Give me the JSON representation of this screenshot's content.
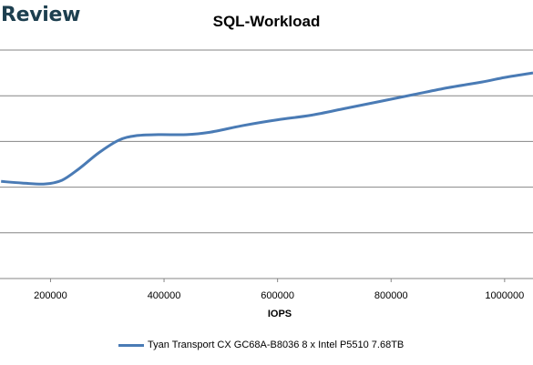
{
  "header": {
    "brand": "Review"
  },
  "chart_data": {
    "type": "line",
    "title": "SQL-Workload",
    "xlabel": "IOPS",
    "ylabel": "",
    "xlim": [
      111000,
      1050000
    ],
    "x_ticks": [
      200000,
      400000,
      600000,
      800000,
      1000000
    ],
    "x_tick_labels": [
      "200000",
      "400000",
      "600000",
      "800000",
      "1000000"
    ],
    "y_gridlines": 6,
    "grid": "horizontal",
    "legend_position": "bottom",
    "series": [
      {
        "name": "Tyan Transport CX GC68A-B8036 8 x Intel P5510 7.68TB",
        "color": "#4a7bb5",
        "x": [
          113000,
          150000,
          190000,
          220000,
          250000,
          285000,
          320000,
          350000,
          390000,
          440000,
          480000,
          540000,
          600000,
          660000,
          720000,
          780000,
          840000,
          900000,
          960000,
          1000000,
          1050000
        ],
        "y": [
          0.575,
          0.582,
          0.586,
          0.57,
          0.52,
          0.45,
          0.395,
          0.375,
          0.37,
          0.37,
          0.36,
          0.33,
          0.305,
          0.285,
          0.255,
          0.225,
          0.195,
          0.165,
          0.14,
          0.12,
          0.1
        ]
      }
    ]
  }
}
